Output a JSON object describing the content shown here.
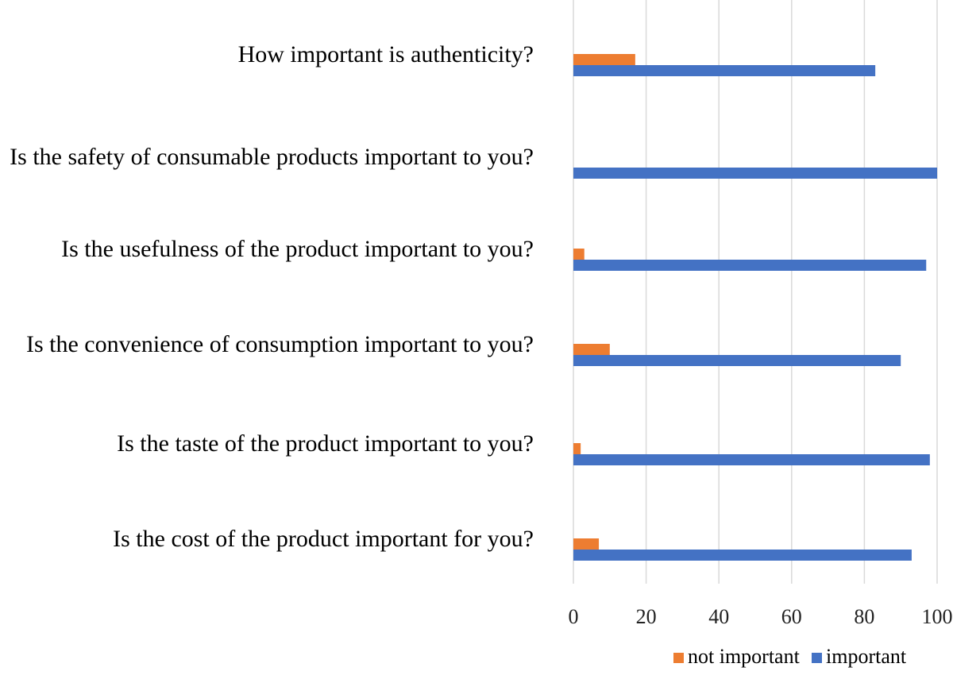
{
  "chart_data": {
    "type": "bar",
    "orientation": "horizontal",
    "categories": [
      "How important is authenticity?",
      "Is the safety of consumable products important to you?",
      "Is the usefulness of the product important to you?",
      "Is the convenience of consumption important to you?",
      "Is the taste of the product important to you?",
      "Is the cost of the product important for you?"
    ],
    "series": [
      {
        "name": "not important",
        "color": "#ED7D31",
        "values": [
          17,
          0,
          3,
          10,
          2,
          7
        ]
      },
      {
        "name": "important",
        "color": "#4472C4",
        "values": [
          83,
          100,
          97,
          90,
          98,
          93
        ]
      }
    ],
    "title": "",
    "xlabel": "",
    "ylabel": "",
    "xlim": [
      0,
      100
    ],
    "xticks": [
      "0",
      "20",
      "40",
      "60",
      "80",
      "100"
    ],
    "grid": true,
    "legend_position": "bottom-right"
  }
}
